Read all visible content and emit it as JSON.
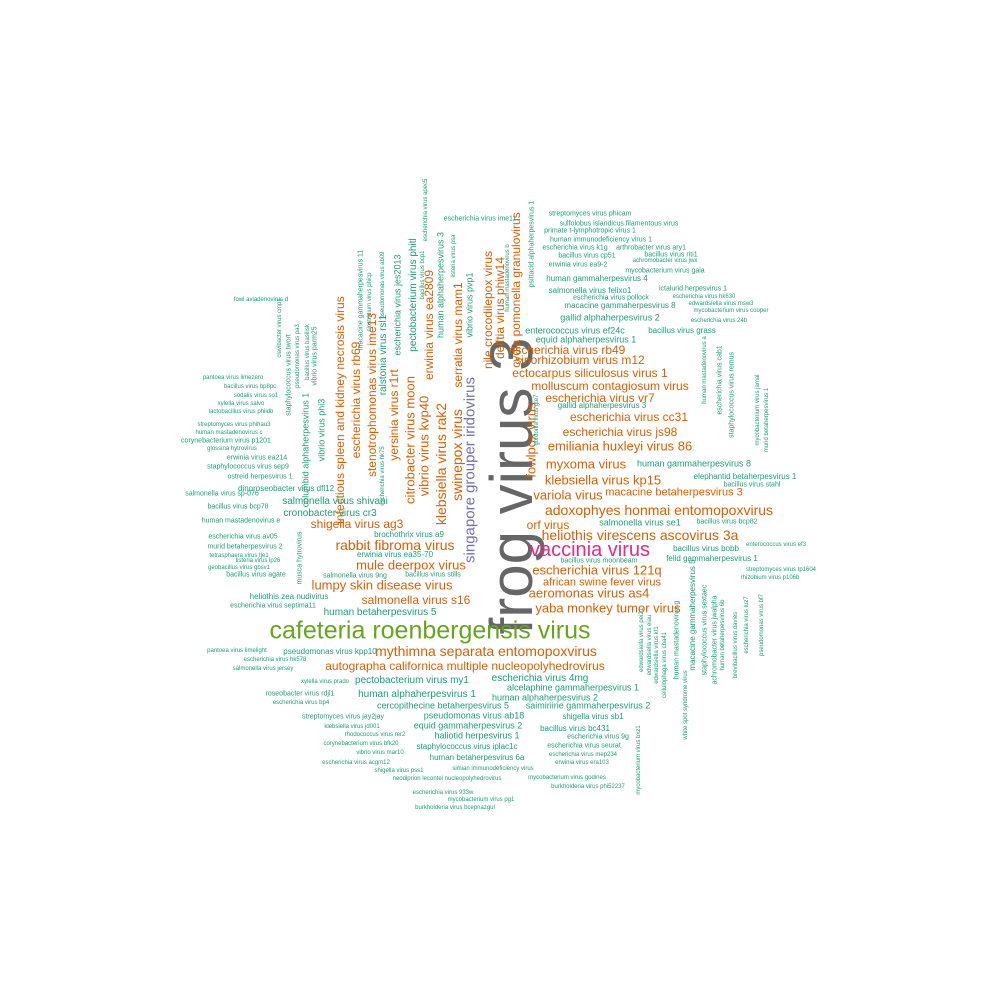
{
  "colors": {
    "large": "#666666",
    "green": "#66a61e",
    "magenta": "#e7298a",
    "purple": "#7570b3",
    "orange": "#d95f02",
    "teal": "#1b9e77"
  },
  "words": [
    "frog virus 3",
    "cafeteria roenbergensis virus",
    "vaccinia virus",
    "singapore grouper iridovirus",
    "heliothis virescens ascovirus 3a",
    "adoxophyes honmai entomopoxvirus",
    "mythimna separata entomopoxvirus",
    "rabbit fibroma virus",
    "myxoma virus",
    "escherichia virus 121q",
    "klebsiella virus kp15",
    "variola virus",
    "emiliania huxleyi virus 86",
    "klebsiella virus rak2",
    "swinepox virus",
    "vibrio virus kvp40",
    "citrobacter virus moon",
    "yaba monkey tumor virus",
    "aeromonas virus as4",
    "mule deerpox virus",
    "lumpy skin disease virus",
    "salmonella virus s16",
    "shigella virus ag3",
    "fowlpox virus",
    "orf virus",
    "autographa californica multiple nucleopolyhedrovirus",
    "infectious spleen and kidney necrosis virus",
    "escherichia virus rb69",
    "stenotrophomonas virus ime13",
    "yersinia virus r1rt",
    "escherichia virus js98",
    "escherichia virus cc31",
    "molluscum contagiosum virus",
    "escherichia virus vr7",
    "ectocarpus siliculosus virus 1",
    "sinorhizobium virus m12",
    "escherichia virus rb49",
    "nile crocodilepox virus",
    "delftia virus phiw14",
    "cydia pomonella granulovirus",
    "serratia virus mam1",
    "erwinia virus ea2809",
    "african swine fever virus",
    "macacine betaherpesvirus 3",
    "salmonella virus shivani",
    "cronobacter virus cr3",
    "human betaherpesvirus 5",
    "pectobacterium virus my1",
    "escherichia virus 4mg",
    "human alphaherpesvirus 1",
    "human alphaherpesvirus 2",
    "salmonella virus se1",
    "gallid alphaherpesvirus 2",
    "gallid alphaherpesvirus 3",
    "equid alphaherpesvirus 1",
    "enterococcus virus ef24c",
    "human gammaherpesvirus 8",
    "human gammaherpesvirus 4",
    "macacine gammaherpesvirus 5",
    "pectobacterium virus phitl",
    "escherichia virus jes2013",
    "ralstonia virus rsl1",
    "vibrio virus pvp1",
    "human alphaherpesvirus 3",
    "heliothis zea nudivirus",
    "dinoroseobacter virus dfl12",
    "vibrio virus phi3",
    "columbid alphaherpesvirus 1",
    "brochothrix virus a9",
    "erwinia virus ea35-70",
    "salmonella virus 9ng",
    "bacillus virus stills",
    "cercopithecine betaherpesvirus 5",
    "pseudomonas virus ab18",
    "alcelaphine gammaherpesvirus 1",
    "saimiriine gammaherpesvirus 2",
    "equid gammaherpesvirus 2",
    "haliotid herpesvirus 1",
    "shigella virus sb1",
    "bacillus virus bc431",
    "staphylococcus virus iplac1c",
    "human betaherpesvirus 6a",
    "escherichia virus seurat",
    "escherichia virus 9g",
    "felid gammaherpesvirus 1",
    "bacillus virus bobb",
    "bacillus virus moonbeam",
    "elephantid betaherpesvirus 1",
    "bacillus virus stahl",
    "escherichia virus vpe",
    "mycobacterium virus gaia",
    "salmonella virus felixo1",
    "macacine gammaherpesvirus 8",
    "escherichia virus pollock",
    "bacillus virus grass",
    "ictalurid herpesvirus 1",
    "escherichia virus ime11",
    "streptomyces virus phicam",
    "sulfolobus islandicus filamentous virus",
    "primate t-lymphotropic virus 1",
    "human immunodeficiency virus 1",
    "escherichia virus k1g",
    "arthrobacter virus ary1",
    "bacillus virus cp51",
    "bacillus virus riti1",
    "achromobacter virus jwx",
    "erwinia virus ea9-2",
    "escherichia virus hk630",
    "edwardsiella virus msw3",
    "mycobacterium virus cooper",
    "escherichia virus 24b",
    "salmonella virus sp-076",
    "bacillus virus bcp78",
    "human mastadenovirus e",
    "escherichia virus av05",
    "murid betaherpesvirus 2",
    "listeria virus lp26",
    "tetrasphaera virus tje1",
    "geobacillus virus gbsv1",
    "bacillus virus agate",
    "escherichia virus septima11",
    "pseudomonas virus kpp10",
    "escherichia virus hk578",
    "salmonella virus jersey",
    "xylella virus prado",
    "roseobacter virus rdjl1",
    "escherichia virus bp4",
    "streptomyces virus jay2jay",
    "klebsiella virus jd001",
    "rhodococcus virus rer2",
    "corynebacterium virus bfk20",
    "vibrio virus mar10",
    "escherichia virus acgm12",
    "shigella virus pss1",
    "neodiprion lecontei nucleopolyhedrovirus",
    "escherichia virus 933w",
    "mycobacterium virus pg1",
    "burkholderia virus bcepnazgul",
    "simian immunodeficiency virus",
    "mycobacterium virus godines",
    "burkholderia virus phi52237",
    "escherichia virus mep234",
    "erwinia virus era103",
    "enterococcus virus ef3",
    "streptomyces virus tp1604",
    "rhizobium virus p106b",
    "bacillus virus bcp82",
    "pantoea virus limezero",
    "bacillus virus bp8pc",
    "sodalis virus so1",
    "xylella virus salvo",
    "lactobacillus virus phildb",
    "streptomyces virus phihau3",
    "human mastadenovirus c",
    "corynebacterium virus p1201",
    "glossina hytrovirus",
    "erwinia virus ea214",
    "staphylococcus virus sep9",
    "ostreid herpesvirus 1",
    "pantoea virus limelight",
    "fowl aviadenovirus d",
    "escherichia virus apec5",
    "listeria virus psa",
    "psittacid alphaherpesvirus 1",
    "human mastadenovirus b",
    "bacillus virus bcp1",
    "staphylococcus virus twort",
    "pseudomonas virus pa3",
    "bacillus virus basilisk",
    "macacine gammaherpesvirus 11",
    "clostridium virus phicp",
    "pseudomonas virus ab09",
    "salmonella virus s16b",
    "escherichia virus hk75",
    "bacillus virus scripps",
    "musca hytrovirus",
    "cellulophaga virus st",
    "vibrio virus parm25",
    "clavibacter virus cmp1",
    "escherichia virus prd1",
    "mycobacterium virus ldub",
    "gordonia virus gte7",
    "staphylococcus virus remus",
    "escherichia virus cab1",
    "human mastadenovirus g",
    "staphylococcus virus sextaec",
    "achromobacter virus jwalpha",
    "human betaherpesvirus 6b",
    "brevibacillus virus davies",
    "escherichia virus luz7",
    "pseudomonas virus lu11",
    "mycobacterium virus jamal",
    "murid betaherpesvirus 1",
    "human mastadenovirus a",
    "edwardsiella virus pei21",
    "edwardsiella virus eiau",
    "cellulophaga virus cba41",
    "white spot syndrome virus",
    "mycobacterium virus bxz1",
    "edwardsiella virus kf1",
    "escherichia virus js10",
    "human betaherpesvirus 7",
    "pseudomonas virus bf7"
  ]
}
